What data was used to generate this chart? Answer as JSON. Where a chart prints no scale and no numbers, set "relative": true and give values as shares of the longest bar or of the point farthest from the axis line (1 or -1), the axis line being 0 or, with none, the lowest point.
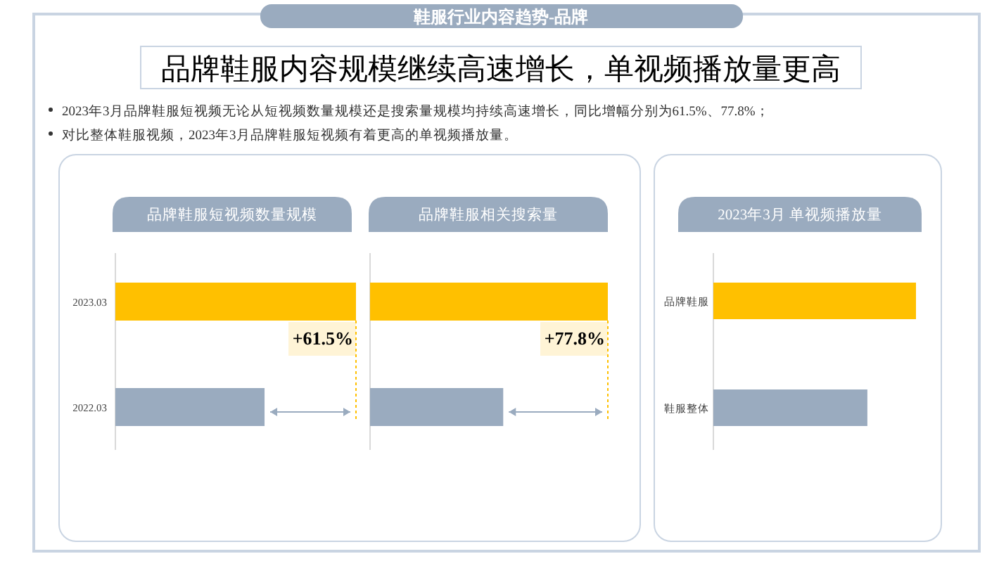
{
  "chart_data": [
    {
      "type": "other",
      "title": "鞋服行业内容趋势-品牌",
      "subtitle": "品牌鞋服内容规模继续高速增长，单视频播放量更高",
      "annotations": [
        "2023年3月品牌鞋服短视频无论从短视频数量规模还是搜索量规模均持续高速增长，同比增幅分别为61.5%、77.8%；",
        "对比整体鞋服视频，2023年3月品牌鞋服短视频有着更高的单视频播放量。"
      ]
    },
    {
      "type": "bar",
      "orientation": "horizontal",
      "relative": true,
      "title": "品牌鞋服短视频数量规模",
      "categories": [
        "2023.03",
        "2022.03"
      ],
      "values": [
        1,
        0.62
      ],
      "colors": [
        "#ffc000",
        "#9aabbf"
      ],
      "annotations": [
        "+61.5%"
      ]
    },
    {
      "type": "bar",
      "orientation": "horizontal",
      "relative": true,
      "tick_labels": false,
      "title": "品牌鞋服相关搜索量",
      "categories": [
        "2023.03",
        "2022.03"
      ],
      "values": [
        1,
        0.56
      ],
      "colors": [
        "#ffc000",
        "#9aabbf"
      ],
      "annotations": [
        "+77.8%"
      ]
    },
    {
      "type": "bar",
      "orientation": "horizontal",
      "relative": true,
      "title": "2023年3月 单视频播放量",
      "categories": [
        "品牌鞋服",
        "鞋服整体"
      ],
      "values": [
        1,
        0.76
      ],
      "colors": [
        "#ffc000",
        "#9aabbf"
      ]
    }
  ]
}
